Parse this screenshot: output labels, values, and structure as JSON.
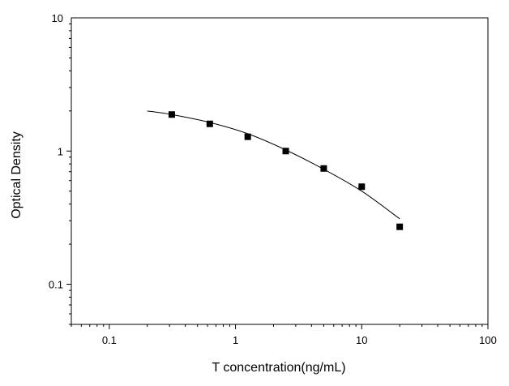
{
  "chart_data": {
    "type": "scatter",
    "title": "",
    "xlabel": "T concentration(ng/mL)",
    "ylabel": "Optical Density",
    "x_scale": "log",
    "y_scale": "log",
    "xlim": [
      0.05,
      100
    ],
    "ylim": [
      0.05,
      10
    ],
    "x_ticks": [
      {
        "value": 0.1,
        "label": "0.1"
      },
      {
        "value": 1,
        "label": "1"
      },
      {
        "value": 10,
        "label": "10"
      },
      {
        "value": 100,
        "label": "100"
      }
    ],
    "y_ticks": [
      {
        "value": 0.1,
        "label": "0.1"
      },
      {
        "value": 1,
        "label": "1"
      },
      {
        "value": 10,
        "label": "10"
      }
    ],
    "grid": false,
    "legend": "none",
    "series": [
      {
        "marker": "square",
        "color": "#000000",
        "points": [
          {
            "x": 0.3125,
            "y": 1.88
          },
          {
            "x": 0.625,
            "y": 1.6
          },
          {
            "x": 1.25,
            "y": 1.28
          },
          {
            "x": 2.5,
            "y": 1.0
          },
          {
            "x": 5,
            "y": 0.74
          },
          {
            "x": 10,
            "y": 0.54
          },
          {
            "x": 20,
            "y": 0.27
          }
        ]
      }
    ],
    "fit_curve": {
      "color": "#000000",
      "points": [
        {
          "x": 0.2,
          "y": 2.0
        },
        {
          "x": 0.3125,
          "y": 1.88
        },
        {
          "x": 0.625,
          "y": 1.64
        },
        {
          "x": 1.25,
          "y": 1.35
        },
        {
          "x": 2.5,
          "y": 1.02
        },
        {
          "x": 5,
          "y": 0.73
        },
        {
          "x": 10,
          "y": 0.5
        },
        {
          "x": 20,
          "y": 0.31
        }
      ]
    }
  }
}
